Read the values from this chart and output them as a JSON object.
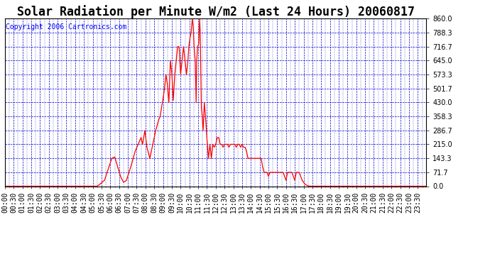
{
  "title": "Solar Radiation per Minute W/m2 (Last 24 Hours) 20060817",
  "copyright": "Copyright 2006 Cartronics.com",
  "outer_bg_color": "#ffffff",
  "plot_bg_color": "#ffffff",
  "line_color": "#ff0000",
  "grid_color": "#0000cc",
  "title_color": "#000000",
  "title_bg_color": "#ffffff",
  "ylim": [
    0.0,
    860.0
  ],
  "yticks": [
    0.0,
    71.7,
    143.3,
    215.0,
    286.7,
    358.3,
    430.0,
    501.7,
    573.3,
    645.0,
    716.7,
    788.3,
    860.0
  ],
  "n_points": 1440,
  "title_fontsize": 12,
  "tick_fontsize": 7,
  "copyright_fontsize": 7
}
